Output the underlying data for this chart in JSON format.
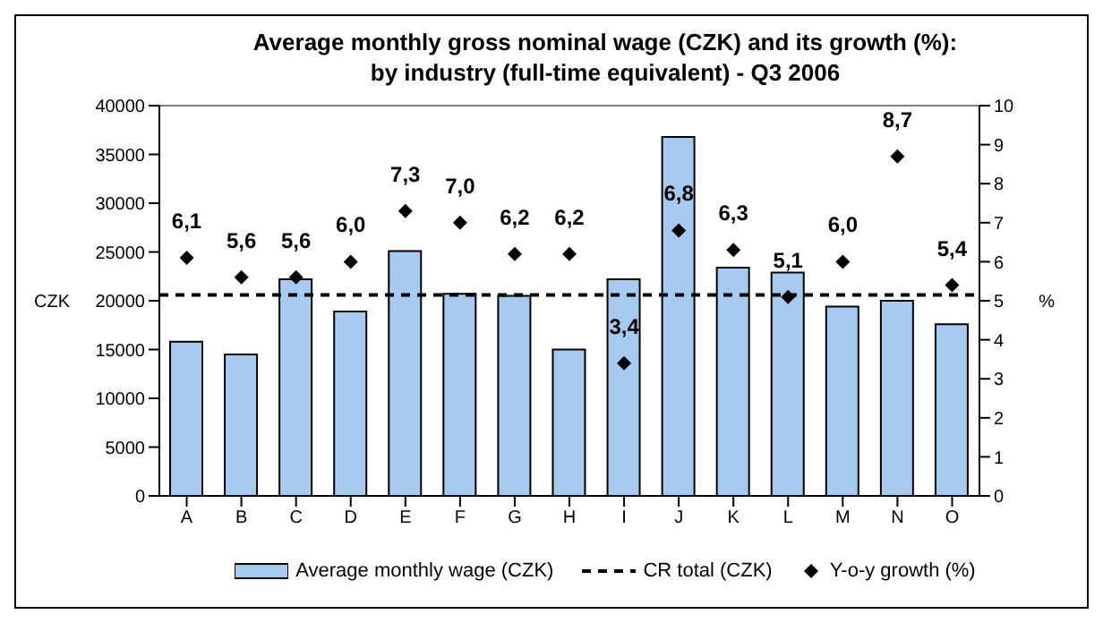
{
  "chart_data": {
    "type": "bar",
    "title": "Average monthly gross nominal wage (CZK) and its growth (%):\nby industry (full-time equivalent) - Q3 2006",
    "ylabel": "CZK",
    "y2label": "%",
    "categories": [
      "A",
      "B",
      "C",
      "D",
      "E",
      "F",
      "G",
      "H",
      "I",
      "J",
      "K",
      "L",
      "M",
      "N",
      "O"
    ],
    "series": [
      {
        "name": "Average monthly wage (CZK)",
        "color": "#a6caf0",
        "values": [
          15800,
          14500,
          22200,
          18900,
          25100,
          20700,
          20500,
          15000,
          22200,
          36800,
          23400,
          22900,
          19400,
          20000,
          17600
        ]
      },
      {
        "name": "Y-o-y growth (%)",
        "type": "scatter",
        "axis": "y2",
        "color": "#000000",
        "marker": "diamond",
        "values": [
          6.1,
          5.6,
          5.6,
          6.0,
          7.3,
          7.0,
          6.2,
          6.2,
          3.4,
          6.8,
          6.3,
          5.1,
          6.0,
          8.7,
          5.4
        ],
        "value_labels": [
          "6,1",
          "5,6",
          "5,6",
          "6,0",
          "7,3",
          "7,0",
          "6,2",
          "6,2",
          "3,4",
          "6,8",
          "6,3",
          "5,1",
          "6,0",
          "8,7",
          "5,4"
        ]
      }
    ],
    "ref_lines": [
      {
        "axis": "y",
        "value": 20600,
        "label": "CR total (CZK)",
        "color": "#000000",
        "line_style": "dashed"
      }
    ],
    "ylim": [
      0,
      40000
    ],
    "yticks": [
      0,
      5000,
      10000,
      15000,
      20000,
      25000,
      30000,
      35000,
      40000
    ],
    "y2lim": [
      0,
      10
    ],
    "y2ticks": [
      0,
      1,
      2,
      3,
      4,
      5,
      6,
      7,
      8,
      9,
      10
    ],
    "grid": false,
    "legend": "bottom"
  }
}
